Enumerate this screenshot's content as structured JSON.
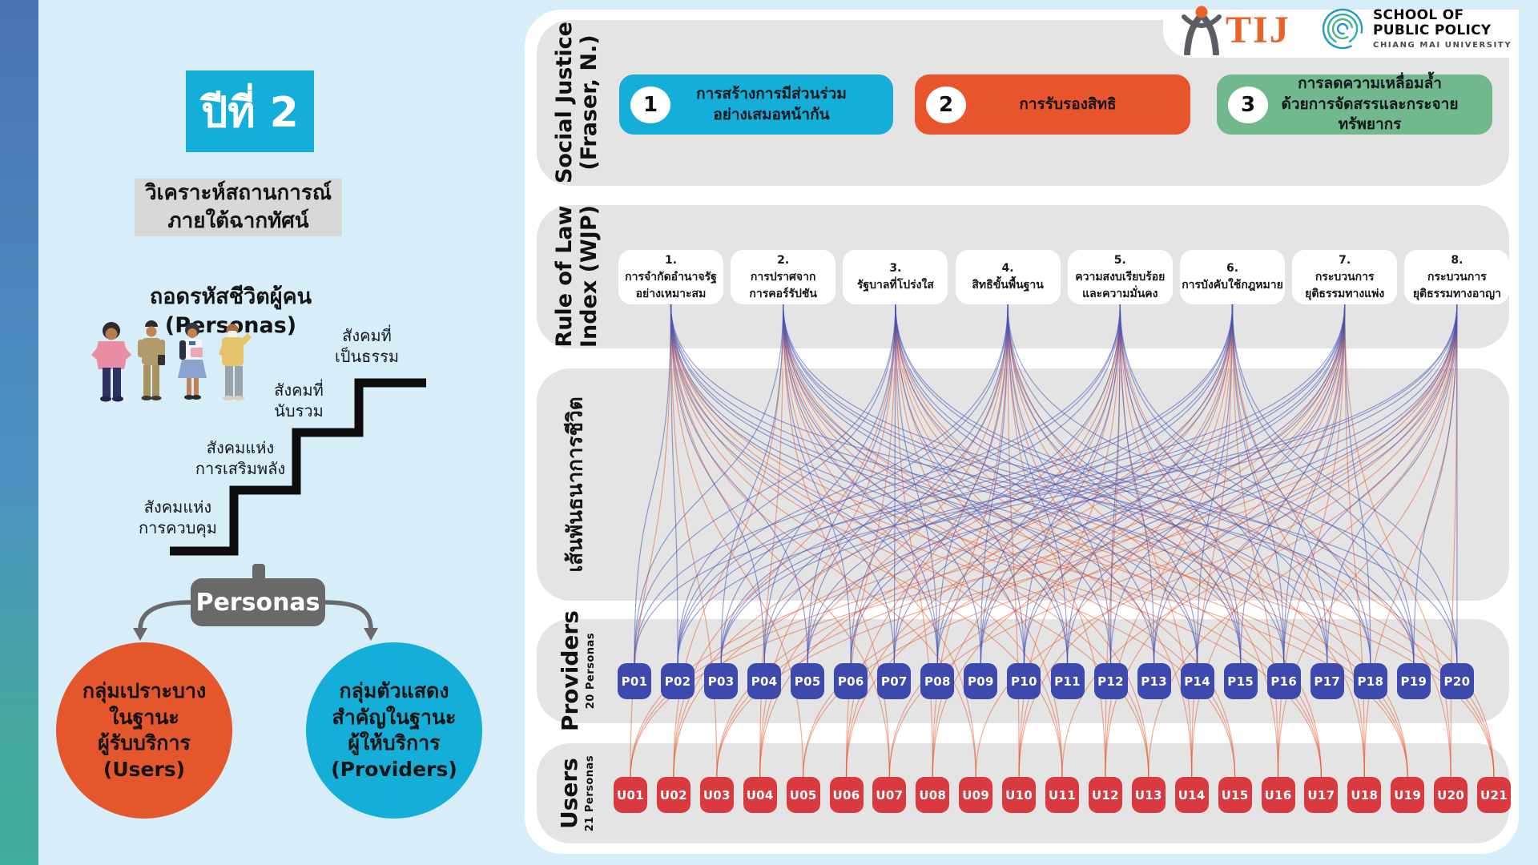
{
  "left": {
    "year_badge": "ปีที่ 2",
    "subtitle": "วิเคราะห์สถานการณ์\nภายใต้ฉากทัศน์",
    "personas_heading": "ถอดรหัสชีวิตผู้คน (Personas)",
    "stairs": [
      "สังคมแห่ง\nการควบคุม",
      "สังคมแห่ง\nการเสริมพลัง",
      "สังคมที่\nนับรวม",
      "สังคมที่\nเป็นธรรม"
    ],
    "personas_box": "Personas",
    "users_circle": "กลุ่มเปราะบาง\nในฐานะ\nผู้รับบริการ\n(Users)",
    "providers_circle": "กลุ่มตัวแสดง\nสำคัญในฐานะ\nผู้ให้บริการ\n(Providers)",
    "users_circle_color": "#e4562c",
    "providers_circle_color": "#15aed9"
  },
  "panel": {
    "social": {
      "label_line1": "Social Justice",
      "label_line2": "(Fraser, N.)",
      "items": [
        {
          "num": "1",
          "color": "#14aed8",
          "text": "การสร้างการมีส่วนร่วม\nอย่างเสมอหน้ากัน"
        },
        {
          "num": "2",
          "color": "#e8552c",
          "text": "การรับรองสิทธิ"
        },
        {
          "num": "3",
          "color": "#72b88e",
          "text": "การลดความเหลื่อมล้ำ\nด้วยการจัดสรรและกระจายทรัพยากร"
        }
      ]
    },
    "rule": {
      "label_line1": "Rule of Law",
      "label_line2": "Index (WJP)",
      "items": [
        "1.\nการจำกัดอำนาจรัฐ\nอย่างเหมาะสม",
        "2.\nการปราศจาก\nการคอร์รัปชัน",
        "3.\nรัฐบาลที่โปร่งใส",
        "4.\nสิทธิขั้นพื้นฐาน",
        "5.\nความสงบเรียบร้อย\nและความมั่นคง",
        "6.\nการบังคับใช้กฎหมาย",
        "7.\nกระบวนการ\nยุติธรรมทางแพ่ง",
        "8.\nกระบวนการ\nยุติธรรมทางอาญา"
      ]
    },
    "flow": {
      "label": "เส้นพันธนาการชีวิต"
    },
    "providers": {
      "label": "Providers",
      "sub": "20 Personas",
      "color": "#3e49ae",
      "items": [
        "P01",
        "P02",
        "P03",
        "P04",
        "P05",
        "P06",
        "P07",
        "P08",
        "P09",
        "P10",
        "P11",
        "P12",
        "P13",
        "P14",
        "P15",
        "P16",
        "P17",
        "P18",
        "P19",
        "P20"
      ]
    },
    "users": {
      "label": "Users",
      "sub": "21 Personas",
      "color": "#d93a40",
      "items": [
        "U01",
        "U02",
        "U03",
        "U04",
        "U05",
        "U06",
        "U07",
        "U08",
        "U09",
        "U10",
        "U11",
        "U12",
        "U13",
        "U14",
        "U15",
        "U16",
        "U17",
        "U18",
        "U19",
        "U20",
        "U21"
      ]
    },
    "edges": {
      "blue_color": "#4553b8",
      "red_color": "#e6572e",
      "blue": [
        [
          0,
          3,
          6,
          9,
          12,
          15,
          18,
          1,
          4,
          7,
          10,
          13
        ],
        [
          7,
          10,
          13,
          16,
          19,
          2,
          5,
          8,
          11,
          14,
          17,
          0
        ],
        [
          14,
          17,
          0,
          3,
          6,
          9,
          12,
          15,
          18,
          1,
          4,
          7
        ],
        [
          1,
          4,
          7,
          10,
          13,
          16,
          19,
          2,
          5,
          8,
          11,
          14
        ],
        [
          8,
          11,
          14,
          17,
          0,
          3,
          6,
          9,
          12,
          15,
          18,
          1
        ],
        [
          15,
          18,
          1,
          4,
          7,
          10,
          13,
          16,
          19,
          2,
          5,
          8
        ],
        [
          2,
          5,
          8,
          11,
          14,
          17,
          0,
          3,
          6,
          9,
          12,
          15
        ],
        [
          9,
          12,
          15,
          18,
          1,
          4,
          7,
          10,
          13,
          16,
          19,
          2
        ]
      ],
      "red": [
        [
          0,
          2,
          4,
          6,
          8,
          10,
          12,
          14,
          16,
          18
        ],
        [
          6,
          8,
          10,
          12,
          14,
          16,
          18,
          20,
          1,
          3
        ],
        [
          10,
          12,
          14,
          16,
          18,
          20,
          1,
          3,
          5,
          7
        ],
        [
          16,
          18,
          20,
          1,
          3,
          5,
          7,
          9,
          11,
          13
        ],
        [
          20,
          1,
          3,
          5,
          7,
          9,
          11,
          13,
          15,
          17
        ],
        [
          5,
          7,
          9,
          11,
          13,
          15,
          17,
          19,
          0,
          2
        ],
        [
          9,
          11,
          13,
          15,
          17,
          19,
          0,
          2,
          4,
          6
        ],
        [
          15,
          17,
          19,
          0,
          2,
          4,
          6,
          8,
          10,
          12
        ]
      ]
    }
  },
  "logos": {
    "tij": "TIJ",
    "spp_line1": "SCHOOL OF",
    "spp_line2": "PUBLIC POLICY",
    "spp_line3": "CHIANG MAI UNIVERSITY"
  }
}
